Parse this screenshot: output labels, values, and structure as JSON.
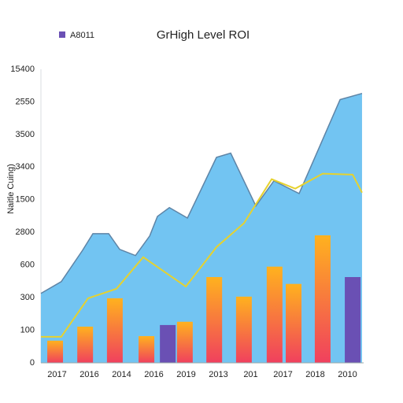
{
  "chart_data": {
    "type": "combo",
    "title": "GrHigh Level ROI",
    "y_label": "Naitle Cuing)",
    "categories": [
      "2017",
      "2016",
      "2014",
      "2016",
      "2019",
      "2013",
      "201",
      "2017",
      "2018",
      "2010"
    ],
    "xlim": [
      0,
      10
    ],
    "ylim": [
      0,
      9
    ],
    "yticks": [
      0,
      {
        "value": 1,
        "label": "100"
      },
      {
        "value": 2,
        "label": "300"
      },
      {
        "value": 3,
        "label": "600"
      },
      {
        "value": 4,
        "label": "2800"
      },
      {
        "value": 5,
        "label": "1500"
      },
      {
        "value": 6,
        "label": "3400"
      },
      {
        "value": 7,
        "label": "3500"
      },
      {
        "value": 8,
        "label": "2550"
      },
      {
        "value": 9,
        "label": "15400"
      }
    ],
    "area": {
      "color": "#72c4f2",
      "stroke": "#5e84a6",
      "x": [
        0,
        0.63,
        1.29,
        1.61,
        2.1,
        2.44,
        2.93,
        3.37,
        3.61,
        3.98,
        4.54,
        5.44,
        5.88,
        6.66,
        7.22,
        8.0,
        9.27,
        9.95
      ],
      "values": [
        2.13,
        2.49,
        3.45,
        3.96,
        3.96,
        3.48,
        3.29,
        3.89,
        4.49,
        4.76,
        4.44,
        6.3,
        6.43,
        4.81,
        5.58,
        5.19,
        8.07,
        8.26
      ]
    },
    "line": {
      "color": "#e6d22e",
      "x": [
        0,
        0.63,
        1.46,
        2.34,
        3.17,
        4.49,
        5.44,
        6.29,
        7.15,
        7.88,
        8.73,
        9.66,
        9.95
      ],
      "values": [
        0.8,
        0.8,
        1.98,
        2.27,
        3.24,
        2.34,
        3.55,
        4.28,
        5.63,
        5.34,
        5.8,
        5.77,
        5.22
      ]
    },
    "series": [
      {
        "gradient": [
          "#ffb21e",
          "#f0405e"
        ],
        "x": [
          0.44,
          1.37,
          2.29,
          3.27,
          4.46,
          5.37,
          6.29,
          7.24,
          7.83,
          8.73
        ],
        "values": [
          0.68,
          1.11,
          1.98,
          0.82,
          1.26,
          2.63,
          2.03,
          2.95,
          2.42,
          3.91
        ]
      },
      {
        "name": "A8011",
        "color": "#6a50b4",
        "x": [
          3.93,
          9.66
        ],
        "values": [
          1.16,
          2.63
        ]
      }
    ]
  }
}
